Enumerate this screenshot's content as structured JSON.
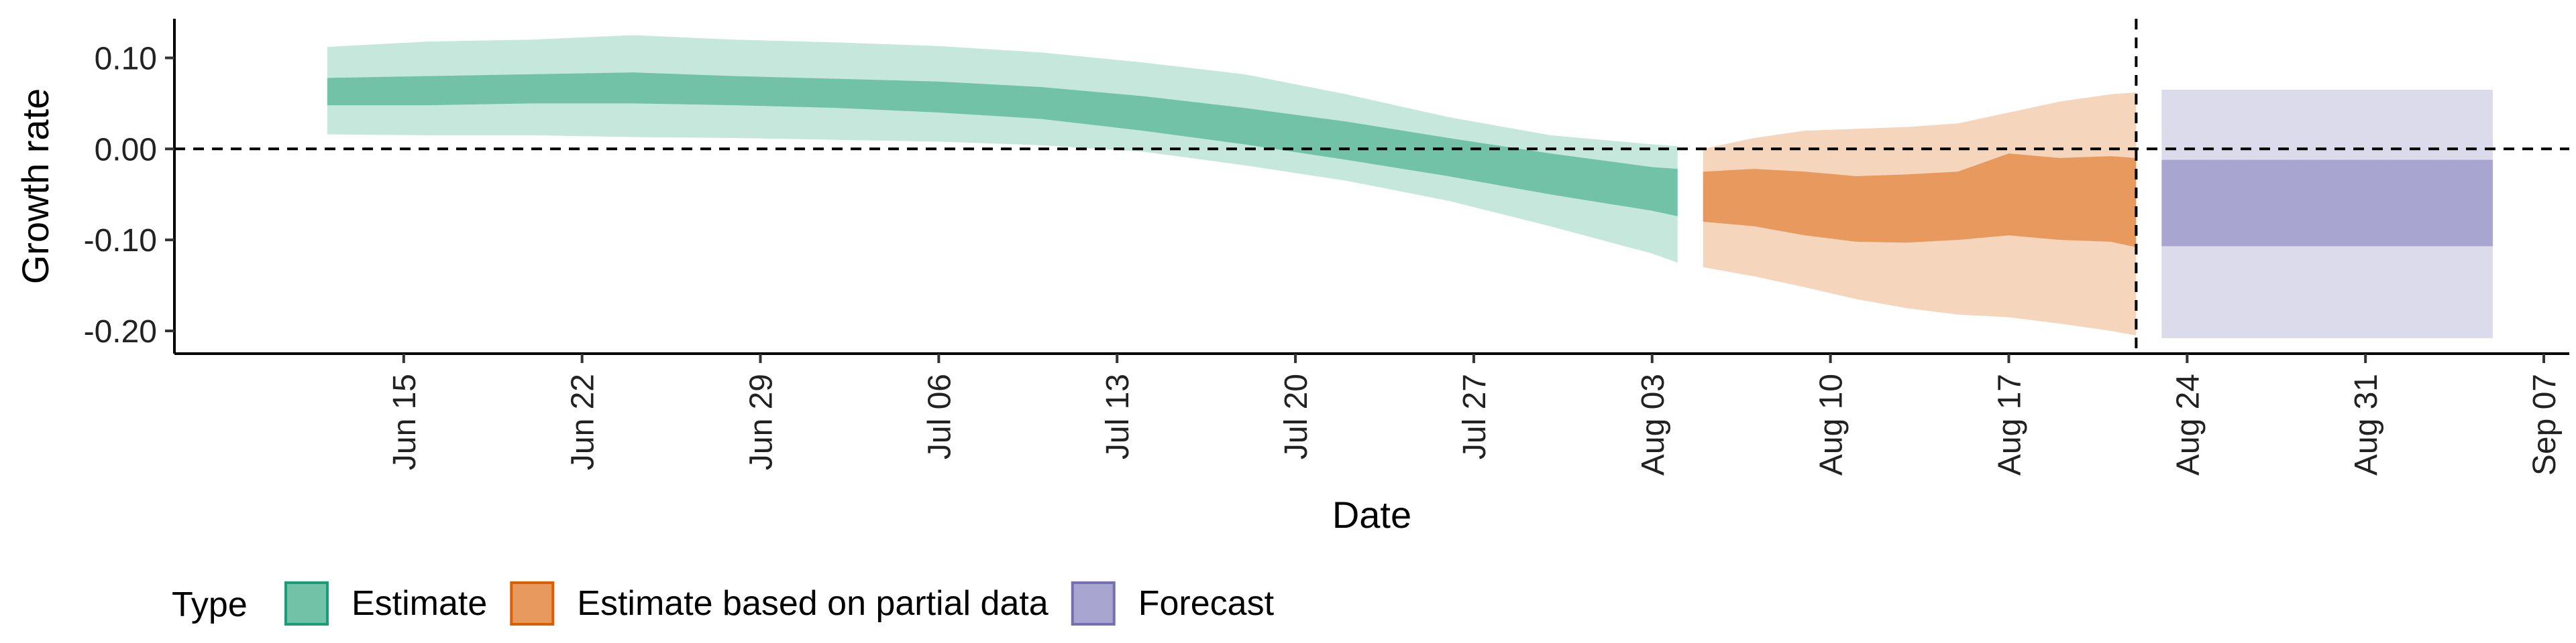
{
  "chart_data": {
    "type": "area",
    "xlabel": "Date",
    "ylabel": "Growth rate",
    "xlim": [
      "2020-06-06",
      "2020-09-08"
    ],
    "ylim": [
      -0.225,
      0.143
    ],
    "x_ticks": [
      "2020-06-15",
      "2020-06-22",
      "2020-06-29",
      "2020-07-06",
      "2020-07-13",
      "2020-07-20",
      "2020-07-27",
      "2020-08-03",
      "2020-08-10",
      "2020-08-17",
      "2020-08-24",
      "2020-08-31",
      "2020-09-07"
    ],
    "x_tick_labels": [
      "Jun 15",
      "Jun 22",
      "Jun 29",
      "Jul 06",
      "Jul 13",
      "Jul 20",
      "Jul 27",
      "Aug 03",
      "Aug 10",
      "Aug 17",
      "Aug 24",
      "Aug 31",
      "Sep 07"
    ],
    "y_ticks": [
      0.1,
      0.0,
      -0.1,
      -0.2
    ],
    "y_tick_labels": [
      "0.10",
      "0.00",
      "-0.10",
      "-0.20"
    ],
    "reference_lines": {
      "horizontal_y": 0.0,
      "vertical_x": "2020-08-22"
    },
    "legend": {
      "title": "Type",
      "position": "bottom-left"
    },
    "series": [
      {
        "name": "Estimate",
        "color_inner": "#72c2a8",
        "color_outer": "#c6e7dc",
        "x": [
          "2020-06-12",
          "2020-06-16",
          "2020-06-20",
          "2020-06-24",
          "2020-06-28",
          "2020-07-02",
          "2020-07-06",
          "2020-07-10",
          "2020-07-14",
          "2020-07-18",
          "2020-07-22",
          "2020-07-26",
          "2020-07-30",
          "2020-08-03",
          "2020-08-04"
        ],
        "inner_upper": [
          0.078,
          0.08,
          0.082,
          0.084,
          0.08,
          0.077,
          0.074,
          0.068,
          0.058,
          0.045,
          0.03,
          0.012,
          -0.005,
          -0.02,
          -0.022
        ],
        "inner_lower": [
          0.048,
          0.048,
          0.05,
          0.05,
          0.048,
          0.045,
          0.04,
          0.033,
          0.02,
          0.005,
          -0.012,
          -0.03,
          -0.05,
          -0.068,
          -0.074
        ],
        "outer_upper": [
          0.112,
          0.118,
          0.12,
          0.125,
          0.12,
          0.117,
          0.113,
          0.106,
          0.095,
          0.082,
          0.06,
          0.035,
          0.015,
          0.005,
          0.003
        ],
        "outer_lower": [
          0.016,
          0.015,
          0.015,
          0.013,
          0.012,
          0.01,
          0.008,
          0.004,
          -0.003,
          -0.018,
          -0.035,
          -0.057,
          -0.085,
          -0.115,
          -0.125
        ]
      },
      {
        "name": "Estimate based on partial data",
        "color_inner": "#e89a5e",
        "color_outer": "#f6d5bd",
        "x": [
          "2020-08-05",
          "2020-08-07",
          "2020-08-09",
          "2020-08-11",
          "2020-08-13",
          "2020-08-15",
          "2020-08-17",
          "2020-08-19",
          "2020-08-21",
          "2020-08-22"
        ],
        "inner_upper": [
          -0.025,
          -0.022,
          -0.025,
          -0.03,
          -0.028,
          -0.025,
          -0.005,
          -0.01,
          -0.008,
          -0.01
        ],
        "inner_lower": [
          -0.08,
          -0.085,
          -0.095,
          -0.102,
          -0.103,
          -0.1,
          -0.095,
          -0.1,
          -0.102,
          -0.108
        ],
        "outer_upper": [
          0.0,
          0.012,
          0.02,
          0.022,
          0.024,
          0.028,
          0.04,
          0.052,
          0.06,
          0.062
        ],
        "outer_lower": [
          -0.13,
          -0.14,
          -0.152,
          -0.165,
          -0.175,
          -0.182,
          -0.185,
          -0.192,
          -0.2,
          -0.205
        ]
      },
      {
        "name": "Forecast",
        "color_inner": "#a8a5d1",
        "color_outer": "#dcdbec",
        "x": [
          "2020-08-23",
          "2020-09-05"
        ],
        "inner_upper": [
          -0.012,
          -0.012
        ],
        "inner_lower": [
          -0.107,
          -0.107
        ],
        "outer_upper": [
          0.065,
          0.065
        ],
        "outer_lower": [
          -0.208,
          -0.208
        ]
      }
    ]
  }
}
